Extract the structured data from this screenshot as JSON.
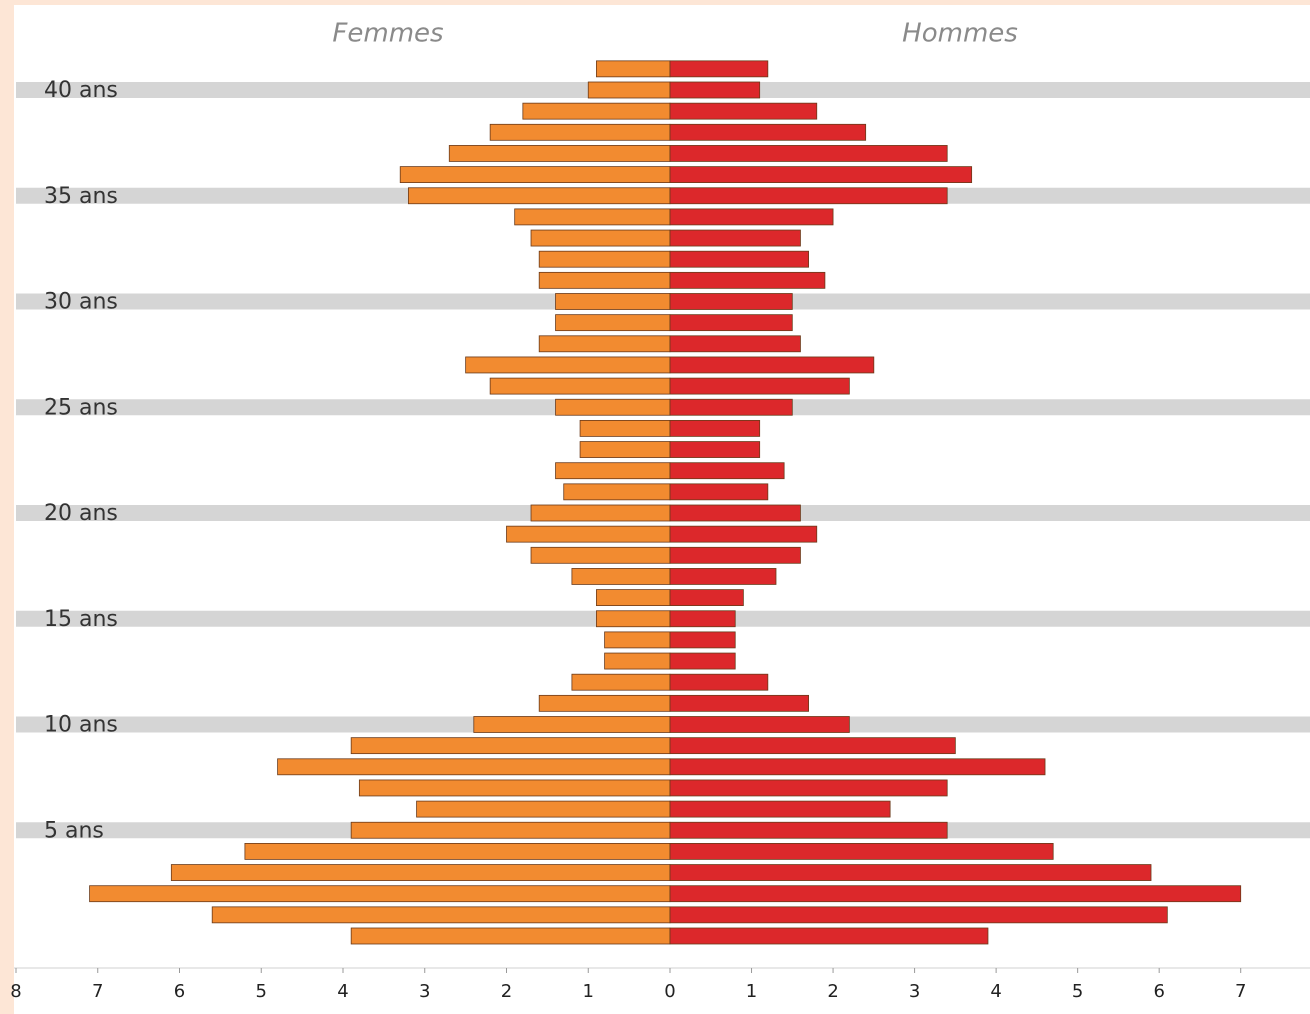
{
  "chart_data": {
    "type": "pyramid",
    "categories": [
      null,
      null,
      null,
      null,
      null,
      "5 ans",
      null,
      null,
      null,
      null,
      "10 ans",
      null,
      null,
      null,
      null,
      "15 ans",
      null,
      null,
      null,
      null,
      "20 ans",
      null,
      null,
      null,
      null,
      "25 ans",
      null,
      null,
      null,
      null,
      "30 ans",
      null,
      null,
      null,
      null,
      "35 ans",
      null,
      null,
      null,
      null,
      "40 ans",
      null
    ],
    "series": [
      {
        "name": "Femmes",
        "color": "#f28b30",
        "side": "left",
        "values": [
          3.9,
          5.6,
          7.1,
          6.1,
          5.2,
          3.9,
          3.1,
          3.8,
          4.8,
          3.9,
          2.4,
          1.6,
          1.2,
          0.8,
          0.8,
          0.9,
          0.9,
          1.2,
          1.7,
          2.0,
          1.7,
          1.3,
          1.4,
          1.1,
          1.1,
          1.4,
          2.2,
          2.5,
          1.6,
          1.4,
          1.4,
          1.6,
          1.6,
          1.7,
          1.9,
          3.2,
          3.3,
          2.7,
          2.2,
          1.8,
          1.0,
          0.9
        ]
      },
      {
        "name": "Hommes",
        "color": "#dc282b",
        "side": "right",
        "values": [
          3.9,
          6.1,
          7.0,
          5.9,
          4.7,
          3.4,
          2.7,
          3.4,
          4.6,
          3.5,
          2.2,
          1.7,
          1.2,
          0.8,
          0.8,
          0.8,
          0.9,
          1.3,
          1.6,
          1.8,
          1.6,
          1.2,
          1.4,
          1.1,
          1.1,
          1.5,
          2.2,
          2.5,
          1.6,
          1.5,
          1.5,
          1.9,
          1.7,
          1.6,
          2.0,
          3.4,
          3.7,
          3.4,
          2.4,
          1.8,
          1.1,
          1.2
        ]
      }
    ],
    "xlim_left": [
      0,
      8
    ],
    "xticks_left": [
      8,
      7,
      6,
      5,
      4,
      3,
      2,
      1,
      0
    ],
    "xlim_right": [
      0,
      7.85
    ],
    "xticks_right": [
      1,
      2,
      3,
      4,
      5,
      6,
      7
    ]
  }
}
